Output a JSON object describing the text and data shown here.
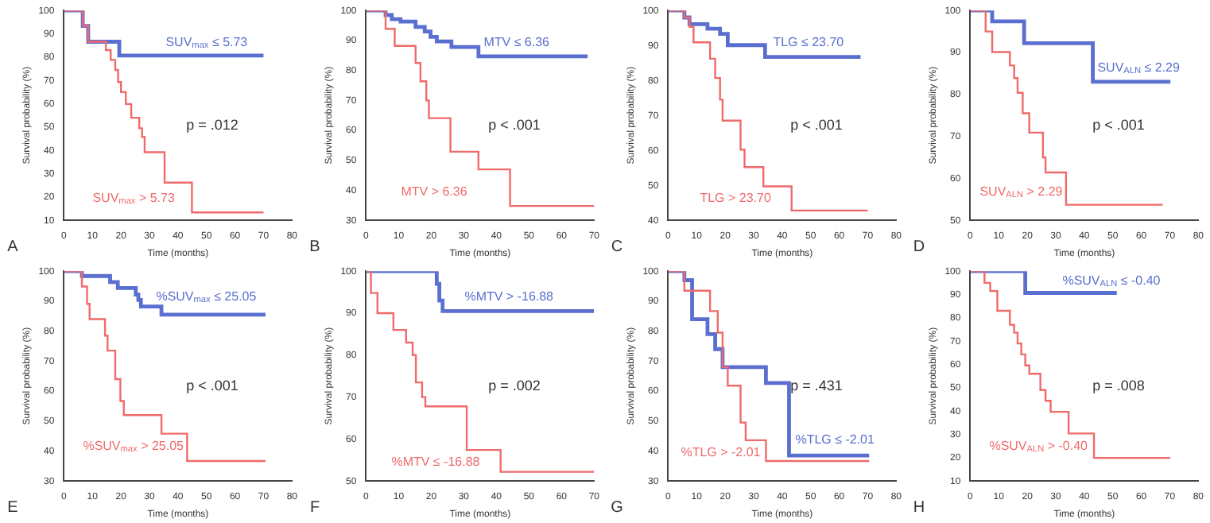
{
  "chart_data": [
    {
      "type": "step",
      "xlabel": "Time (months)",
      "ylabel": "Survival probability (%)",
      "xlim": [
        0,
        80
      ],
      "xticks": [
        0,
        10,
        20,
        30,
        40,
        50,
        60,
        70,
        80
      ],
      "ylim": [
        10,
        100
      ],
      "yticks": [
        10,
        20,
        30,
        40,
        50,
        60,
        70,
        80,
        90,
        100
      ],
      "annotations": [
        "p = .012",
        "A"
      ],
      "series": [
        {
          "name": "SUV$_{max}$ ≤ 5.73",
          "color": "#5a6fcf",
          "x": [
            0,
            6.6,
            8.5,
            19.4,
            70
          ],
          "values": [
            100,
            93.4,
            86.6,
            80.7,
            80.7
          ]
        },
        {
          "name": "SUV$_{max}$ > 5.73",
          "color": "#f06a6a",
          "x": [
            0,
            6.6,
            8.5,
            14.7,
            16.4,
            18,
            19,
            20,
            21.7,
            23.6,
            26.4,
            27.4,
            28.3,
            35.3,
            44.9,
            70
          ],
          "values": [
            100,
            93.4,
            86.6,
            83,
            78.8,
            74.5,
            69.3,
            65,
            59.9,
            54,
            49.5,
            45.8,
            39.2,
            26.2,
            13.4,
            13.4
          ]
        }
      ]
    },
    {
      "type": "step",
      "xlabel": "Time (months)",
      "ylabel": "Survival probability (%)",
      "xlim": [
        0,
        70
      ],
      "xticks": [
        0,
        10,
        20,
        30,
        40,
        50,
        60,
        70
      ],
      "ylim": [
        30,
        100
      ],
      "yticks": [
        30,
        40,
        50,
        60,
        70,
        80,
        90,
        100
      ],
      "annotations": [
        "p < .001",
        "B"
      ],
      "series": [
        {
          "name": "MTV ≤ 6.36",
          "color": "#5a6fcf",
          "x": [
            0,
            6,
            7.9,
            10.6,
            15.2,
            18,
            19.8,
            21.7,
            26.2,
            34.5,
            68
          ],
          "values": [
            100,
            98.5,
            97.1,
            96.3,
            94.5,
            93,
            91.2,
            89.7,
            87.8,
            84.7,
            84.7
          ]
        },
        {
          "name": "MTV > 6.36",
          "color": "#f06a6a",
          "x": [
            0,
            6,
            8.8,
            15.2,
            16.7,
            18.5,
            19.3,
            25.9,
            34.5,
            44.2,
            70
          ],
          "values": [
            100,
            93.9,
            88.2,
            82.5,
            76.4,
            70,
            64.1,
            52.9,
            47,
            34.8,
            34.8
          ]
        }
      ]
    },
    {
      "type": "step",
      "xlabel": "Time (months)",
      "ylabel": "Survival probability (%)",
      "xlim": [
        0,
        80
      ],
      "xticks": [
        0,
        10,
        20,
        30,
        40,
        50,
        60,
        70,
        80
      ],
      "ylim": [
        40,
        100
      ],
      "yticks": [
        40,
        50,
        60,
        70,
        80,
        90,
        100
      ],
      "annotations": [
        "p < .001",
        "C"
      ],
      "series": [
        {
          "name": "TLG ≤ 23.70",
          "color": "#5a6fcf",
          "x": [
            0,
            5.7,
            7.5,
            13.8,
            18.2,
            20.9,
            34,
            67.5
          ],
          "values": [
            100,
            98,
            96.1,
            94.8,
            93.3,
            90.1,
            86.7,
            86.7
          ]
        },
        {
          "name": "TLG > 23.70",
          "color": "#f06a6a",
          "x": [
            0,
            5.7,
            7.5,
            8.9,
            14.7,
            16.5,
            18.2,
            19.1,
            25.4,
            26.8,
            33.4,
            43.3,
            70
          ],
          "values": [
            100,
            98,
            95.3,
            90.9,
            86.2,
            80.7,
            74.5,
            68.5,
            60.2,
            55.2,
            49.7,
            42.8,
            42.8
          ]
        }
      ]
    },
    {
      "type": "step",
      "xlabel": "Time (months)",
      "ylabel": "Survival probability (%)",
      "xlim": [
        0,
        80
      ],
      "xticks": [
        0,
        10,
        20,
        30,
        40,
        50,
        60,
        70,
        80
      ],
      "ylim": [
        50,
        100
      ],
      "yticks": [
        50,
        60,
        70,
        80,
        90,
        100
      ],
      "annotations": [
        "p < .001",
        "D"
      ],
      "series": [
        {
          "name": "SUV$_{ALN}$ ≤ 2.29",
          "color": "#5a6fcf",
          "x": [
            0,
            7.7,
            18.9,
            43,
            70.2
          ],
          "values": [
            100,
            97.4,
            92.2,
            83,
            83
          ]
        },
        {
          "name": "SUV$_{ALN}$ > 2.29",
          "color": "#f06a6a",
          "x": [
            0,
            5.4,
            7.7,
            13.9,
            15.4,
            16.6,
            18.4,
            20.7,
            25.5,
            26.4,
            33.6,
            67.5
          ],
          "values": [
            100,
            95,
            90.1,
            86.9,
            83.9,
            80.4,
            75.5,
            70.9,
            65,
            61.4,
            53.7,
            53.7
          ]
        }
      ]
    },
    {
      "type": "step",
      "xlabel": "Time (months)",
      "ylabel": "Survival probability (%)",
      "xlim": [
        0,
        80
      ],
      "xticks": [
        0,
        10,
        20,
        30,
        40,
        50,
        60,
        70,
        80
      ],
      "ylim": [
        30,
        100
      ],
      "yticks": [
        30,
        40,
        50,
        60,
        70,
        80,
        90,
        100
      ],
      "annotations": [
        "p < .001",
        "E"
      ],
      "series": [
        {
          "name": "%SUV$_{max}$ ≤ 25.05",
          "color": "#5a6fcf",
          "x": [
            0,
            6.3,
            16.2,
            18.9,
            25.2,
            26.1,
            27,
            34.2,
            70.7
          ],
          "values": [
            100,
            98.4,
            96.4,
            94.4,
            92.2,
            90.4,
            88.2,
            85.5,
            85.5
          ]
        },
        {
          "name": "%SUV$_{max}$ > 25.05",
          "color": "#f06a6a",
          "x": [
            0,
            6.3,
            8.1,
            9,
            14.4,
            15.3,
            18,
            19.8,
            21,
            34.2,
            43.2,
            70.7
          ],
          "values": [
            100,
            94.9,
            89.1,
            84,
            78.5,
            73.5,
            64,
            56.7,
            52,
            45.8,
            36.7,
            36.7
          ]
        }
      ]
    },
    {
      "type": "step",
      "xlabel": "Time (months)",
      "ylabel": "Survival probability (%)",
      "xlim": [
        0,
        70
      ],
      "xticks": [
        0,
        10,
        20,
        30,
        40,
        50,
        60,
        70
      ],
      "ylim": [
        50,
        100
      ],
      "yticks": [
        50,
        60,
        70,
        80,
        90,
        100
      ],
      "annotations": [
        "p = .002",
        "F"
      ],
      "series": [
        {
          "name": "%MTV > -16.88",
          "color": "#5a6fcf",
          "x": [
            0,
            21.7,
            22.5,
            23.5,
            70
          ],
          "values": [
            100,
            97,
            93,
            90.5,
            90.5
          ]
        },
        {
          "name": "%MTV ≤ -16.88",
          "color": "#f06a6a",
          "x": [
            0,
            1.5,
            3.5,
            8.4,
            12.3,
            14.3,
            15.3,
            17.2,
            18.2,
            30.9,
            41.3,
            70
          ],
          "values": [
            100,
            94.8,
            90,
            86,
            83,
            80,
            73.5,
            70,
            67.8,
            57.4,
            52.2,
            52.2
          ]
        }
      ]
    },
    {
      "type": "step",
      "xlabel": "Time (months)",
      "ylabel": "Survival probability (%)",
      "xlim": [
        0,
        80
      ],
      "xticks": [
        0,
        10,
        20,
        30,
        40,
        50,
        60,
        70,
        80
      ],
      "ylim": [
        30,
        100
      ],
      "yticks": [
        30,
        40,
        50,
        60,
        70,
        80,
        90,
        100
      ],
      "annotations": [
        "p = .431",
        "G"
      ],
      "series": [
        {
          "name": "%TLG ≤ -2.01",
          "color": "#5a6fcf",
          "x": [
            0,
            5.7,
            8.4,
            13.8,
            16.5,
            19.1,
            34.3,
            42.4,
            70.5
          ],
          "values": [
            100,
            97,
            84,
            79,
            74,
            68,
            62.7,
            38.5,
            38.5
          ]
        },
        {
          "name": "%TLG > -2.01",
          "color": "#f06a6a",
          "x": [
            0,
            5.7,
            14.7,
            17.4,
            19.1,
            20.9,
            25.4,
            27.2,
            34.3,
            70.5
          ],
          "values": [
            100,
            93.5,
            86.7,
            79.5,
            68,
            61.8,
            49.5,
            43.6,
            36.7,
            36.7
          ]
        }
      ]
    },
    {
      "type": "step",
      "xlabel": "Time (months)",
      "ylabel": "Survival probability (%)",
      "xlim": [
        0,
        80
      ],
      "xticks": [
        0,
        10,
        20,
        30,
        40,
        50,
        60,
        70,
        80
      ],
      "ylim": [
        10,
        100
      ],
      "yticks": [
        10,
        20,
        30,
        40,
        50,
        60,
        70,
        80,
        90,
        100
      ],
      "annotations": [
        "p = .008",
        "H"
      ],
      "series": [
        {
          "name": "%SUV$_{ALN}$ ≤ -0.40",
          "color": "#5a6fcf",
          "x": [
            0,
            19.3,
            51.4
          ],
          "values": [
            100,
            90.7,
            90.7
          ]
        },
        {
          "name": "%SUV$_{ALN}$ > -0.40",
          "color": "#f06a6a",
          "x": [
            0,
            5,
            7,
            9.5,
            13.9,
            15.4,
            16.6,
            17.9,
            19.3,
            20.7,
            24.6,
            26.4,
            28.2,
            34.5,
            43.4,
            70.2
          ],
          "values": [
            100,
            95,
            91.5,
            83,
            77,
            73.6,
            69,
            64.3,
            59.6,
            56,
            49,
            44.4,
            39.7,
            30.4,
            19.9,
            19.9
          ]
        }
      ]
    }
  ]
}
